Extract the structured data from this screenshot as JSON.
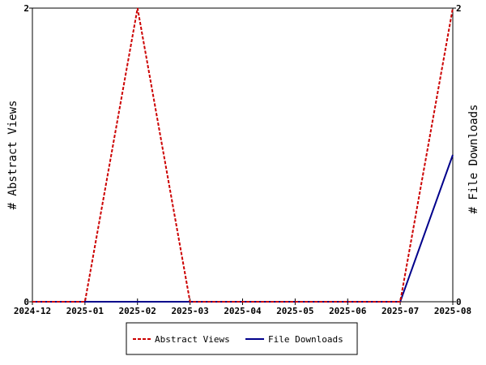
{
  "chart_data": {
    "type": "line",
    "x": [
      "2024-12",
      "2025-01",
      "2025-02",
      "2025-03",
      "2025-04",
      "2025-05",
      "2025-06",
      "2025-07",
      "2025-08"
    ],
    "x_tick_labels": [
      "2024-12",
      "2025-01",
      "2025-02",
      "2025-03",
      "2025-04",
      "2025-05",
      "2025-06",
      "2025-07",
      "2025-08"
    ],
    "left_axis": {
      "label": "# Abstract Views",
      "ylim": [
        0,
        2
      ],
      "ticks": [
        "0",
        "2"
      ]
    },
    "right_axis": {
      "label": "# File Downloads",
      "ylim": [
        0,
        2
      ],
      "ticks": [
        "0",
        "2"
      ]
    },
    "series": [
      {
        "name": "Abstract Views",
        "axis": "left",
        "color": "#cc0000",
        "style": "dashed",
        "values": [
          0,
          0,
          2,
          0,
          0,
          0,
          0,
          0,
          2
        ]
      },
      {
        "name": "File Downloads",
        "axis": "right",
        "color": "#00008b",
        "style": "solid",
        "values": [
          0,
          0,
          0,
          0,
          0,
          0,
          0,
          0,
          1
        ]
      }
    ],
    "grid": false,
    "legend_position": "bottom"
  }
}
